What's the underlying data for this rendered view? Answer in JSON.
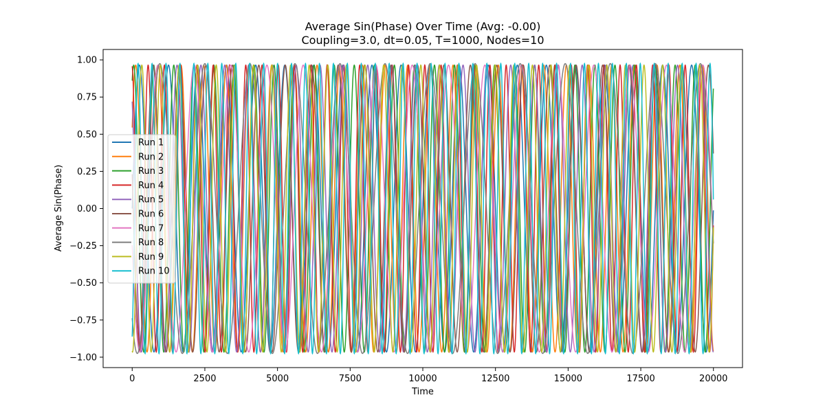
{
  "chart_data": {
    "type": "line",
    "title": "Average Sin(Phase) Over Time (Avg: -0.00)",
    "subtitle": "Coupling=3.0, dt=0.05, T=1000, Nodes=10",
    "xlabel": "Time",
    "ylabel": "Average Sin(Phase)",
    "xlim": [
      -1000,
      21000
    ],
    "ylim": [
      -1.07,
      1.07
    ],
    "x_ticks": [
      0,
      2500,
      5000,
      7500,
      10000,
      12500,
      15000,
      17500,
      20000
    ],
    "x_tick_labels": [
      "0",
      "2500",
      "5000",
      "7500",
      "10000",
      "12500",
      "15000",
      "17500",
      "20000"
    ],
    "y_ticks": [
      -1.0,
      -0.75,
      -0.5,
      -0.25,
      0.0,
      0.25,
      0.5,
      0.75,
      1.0
    ],
    "y_tick_labels": [
      "−1.00",
      "−0.75",
      "−0.50",
      "−0.25",
      "0.00",
      "0.25",
      "0.50",
      "0.75",
      "1.00"
    ],
    "grid": false,
    "legend_position": "center-left",
    "series": [
      {
        "name": "Run 1",
        "color": "#1f77b4",
        "period": 1000,
        "amplitude": 0.965,
        "phase": 0.0
      },
      {
        "name": "Run 2",
        "color": "#ff7f0e",
        "period": 780,
        "amplitude": 0.965,
        "phase": 0.6
      },
      {
        "name": "Run 3",
        "color": "#2ca02c",
        "period": 690,
        "amplitude": 0.965,
        "phase": 1.1
      },
      {
        "name": "Run 4",
        "color": "#d62728",
        "period": 560,
        "amplitude": 0.965,
        "phase": 1.7
      },
      {
        "name": "Run 5",
        "color": "#9467bd",
        "period": 820,
        "amplitude": 0.965,
        "phase": 2.3
      },
      {
        "name": "Run 6",
        "color": "#8c564b",
        "period": 910,
        "amplitude": 0.965,
        "phase": 2.9
      },
      {
        "name": "Run 7",
        "color": "#e377c2",
        "period": 1250,
        "amplitude": 0.965,
        "phase": 3.4
      },
      {
        "name": "Run 8",
        "color": "#7f7f7f",
        "period": 1550,
        "amplitude": 0.975,
        "phase": 4.0
      },
      {
        "name": "Run 9",
        "color": "#bcbd22",
        "period": 640,
        "amplitude": 0.965,
        "phase": 4.6
      },
      {
        "name": "Run 10",
        "color": "#17becf",
        "period": 480,
        "amplitude": 0.975,
        "phase": 5.2
      }
    ],
    "x_range": [
      0,
      20000
    ]
  }
}
